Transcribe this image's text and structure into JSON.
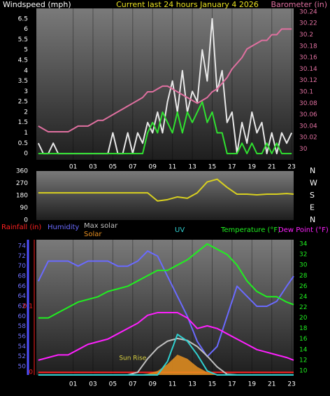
{
  "chart_data": [
    {
      "type": "line",
      "title": "Current last 24 hours January 4 2026",
      "y_label": "Windspeed (mph)",
      "y2_label": "Barometer (in)",
      "xlim": [
        -2.7,
        23.2
      ],
      "xticks": [
        {
          "value": 1,
          "label": "01"
        },
        {
          "value": 3,
          "label": "03"
        },
        {
          "value": 5,
          "label": "05"
        },
        {
          "value": 7,
          "label": "07"
        },
        {
          "value": 9,
          "label": "09"
        },
        11,
        13,
        15,
        17,
        19,
        21,
        23
      ],
      "ylim": [
        -0.3,
        7
      ],
      "yticks": [
        0,
        0.5,
        1,
        1.5,
        2,
        2.5,
        3,
        3.5,
        4,
        4.5,
        5,
        5.5,
        6,
        6.5
      ],
      "y2lim": [
        29.981,
        30.246
      ],
      "y2ticks": [
        30,
        30.02,
        30.04,
        30.06,
        30.08,
        30.1,
        30.12,
        30.14,
        30.16,
        30.18,
        30.2,
        30.22,
        30.24
      ],
      "x": [
        -2.5,
        -2,
        -1.5,
        -1,
        -0.5,
        0,
        0.5,
        1,
        1.5,
        2,
        2.5,
        3,
        3.5,
        4,
        4.5,
        5,
        5.5,
        6,
        6.5,
        7,
        7.5,
        8,
        8.5,
        9,
        9.5,
        10,
        10.5,
        11,
        11.5,
        12,
        12.5,
        13,
        13.5,
        14,
        14.5,
        15,
        15.5,
        16,
        16.5,
        17,
        17.5,
        18,
        18.5,
        19,
        19.5,
        20,
        20.5,
        21,
        21.5,
        22,
        22.5,
        23
      ],
      "series": [
        {
          "color": "#e8e8e8",
          "values": [
            0.5,
            0,
            0,
            0.5,
            0,
            0,
            0,
            0,
            0,
            0,
            0,
            0,
            0,
            0,
            0,
            1,
            0,
            0,
            1,
            0,
            1,
            0.5,
            1.5,
            1,
            2,
            1,
            2.5,
            3.5,
            2,
            4,
            2,
            3,
            2.5,
            5,
            3.5,
            6.5,
            3,
            4,
            1.5,
            2,
            0,
            1.5,
            0.5,
            2,
            1,
            1.5,
            0,
            1,
            0,
            1,
            0.5,
            1
          ]
        },
        {
          "color": "#30e030",
          "values": [
            0,
            0,
            0,
            0,
            0,
            0,
            0,
            0,
            0,
            0,
            0,
            0,
            0,
            0,
            0,
            0,
            0,
            0,
            0,
            0,
            0,
            0,
            1,
            1.5,
            1,
            2,
            1.5,
            1,
            2,
            1,
            2,
            1.5,
            2,
            2.5,
            1.5,
            2,
            1,
            1,
            0,
            0,
            0,
            0.5,
            0,
            0.5,
            0,
            0,
            0.5,
            0,
            0.5,
            0,
            0,
            0
          ]
        },
        {
          "color": "#e070a0",
          "axis": "y2",
          "values": [
            30.04,
            30.035,
            30.03,
            30.03,
            30.03,
            30.03,
            30.03,
            30.035,
            30.04,
            30.04,
            30.04,
            30.045,
            30.05,
            30.05,
            30.055,
            30.06,
            30.065,
            30.07,
            30.075,
            30.08,
            30.085,
            30.09,
            30.1,
            30.1,
            30.105,
            30.11,
            30.11,
            30.105,
            30.1,
            30.095,
            30.09,
            30.085,
            30.08,
            30.085,
            30.09,
            30.1,
            30.105,
            30.115,
            30.125,
            30.14,
            30.15,
            30.16,
            30.175,
            30.18,
            30.185,
            30.19,
            30.19,
            30.2,
            30.2,
            30.21,
            30.21,
            30.21
          ]
        }
      ]
    },
    {
      "type": "line",
      "xlim": [
        -2.7,
        23.2
      ],
      "ylim": [
        0,
        360
      ],
      "yticks": [
        0,
        90,
        180,
        270,
        360
      ],
      "y2lim": [
        0,
        360
      ],
      "y2ticks": [
        {
          "value": 360,
          "label": "N"
        },
        {
          "value": 270,
          "label": "W"
        },
        {
          "value": 180,
          "label": "S"
        },
        {
          "value": 90,
          "label": "E"
        },
        {
          "value": 0,
          "label": "N"
        }
      ],
      "x": [
        -2.5,
        -1.5,
        -0.5,
        0.5,
        1.5,
        2.5,
        3.5,
        4.5,
        5.5,
        6.5,
        7.5,
        8.5,
        9.5,
        10.5,
        11.5,
        12.5,
        13.5,
        14.5,
        15.5,
        16.5,
        17.5,
        18.5,
        19.5,
        20.5,
        21.5,
        22.5,
        23.2
      ],
      "series": [
        {
          "color": "#d8d020",
          "values": [
            200,
            200,
            200,
            200,
            200,
            200,
            200,
            200,
            200,
            200,
            200,
            200,
            140,
            150,
            170,
            160,
            200,
            280,
            300,
            240,
            190,
            190,
            185,
            190,
            190,
            195,
            190
          ]
        }
      ]
    },
    {
      "type": "line",
      "xlim": [
        -2.7,
        23.2
      ],
      "xticks": [
        {
          "value": 1,
          "label": "01"
        },
        {
          "value": 3,
          "label": "03"
        },
        {
          "value": 5,
          "label": "05"
        },
        {
          "value": 7,
          "label": "07"
        },
        {
          "value": 9,
          "label": "09"
        },
        11,
        13,
        15,
        17,
        19,
        21,
        23
      ],
      "ylim": [
        48.33,
        75.26
      ],
      "yticks": [
        50,
        52,
        54,
        56,
        58,
        60,
        62,
        64,
        66,
        68,
        70,
        72,
        74
      ],
      "y2lim": [
        9.2,
        34.8
      ],
      "y2ticks": [
        10,
        12,
        14,
        16,
        18,
        20,
        22,
        24,
        26,
        28,
        30,
        32,
        34
      ],
      "y3lim": [
        -0.004,
        0.201
      ],
      "y3ticks": [
        0,
        0.1
      ],
      "y4lim": [
        0,
        1000
      ],
      "y5lim": [
        0,
        10
      ],
      "annotation": "Sun Rise",
      "x": [
        -2.5,
        -1.5,
        -0.5,
        0.5,
        1.5,
        2.5,
        3.5,
        4.5,
        5.5,
        6.5,
        7.5,
        8.5,
        9.5,
        10.5,
        11.5,
        12.5,
        13.5,
        14.5,
        15.5,
        16.5,
        17.5,
        18.5,
        19.5,
        20.5,
        21.5,
        22.5,
        23.2
      ],
      "series": [
        {
          "name": "Rainfall (in)",
          "color": "#ff2020",
          "axis": "y3",
          "values": [
            0,
            0,
            0,
            0,
            0,
            0,
            0,
            0,
            0,
            0,
            0,
            0,
            0,
            0,
            0,
            0,
            0,
            0,
            0,
            0,
            0,
            0,
            0,
            0,
            0,
            0,
            0
          ]
        },
        {
          "name": "Humidity",
          "color": "#6a6aff",
          "values": [
            67,
            71,
            71,
            71,
            70,
            71,
            71,
            71,
            70,
            70,
            71,
            73,
            72,
            68,
            64,
            60,
            55,
            52,
            54,
            60,
            66,
            64,
            62,
            62,
            63,
            66,
            68
          ]
        },
        {
          "name": "Max solar",
          "color": "#c0c0c0",
          "axis": "y4",
          "values": [
            0,
            0,
            0,
            0,
            0,
            0,
            0,
            0,
            0,
            0,
            20,
            120,
            200,
            250,
            270,
            255,
            210,
            140,
            60,
            5,
            0,
            0,
            0,
            0,
            0,
            0,
            0
          ]
        },
        {
          "name": "Solar",
          "color": "#e89020",
          "axis": "y4",
          "area": true,
          "values": [
            0,
            0,
            0,
            0,
            0,
            0,
            0,
            0,
            0,
            0,
            0,
            10,
            30,
            80,
            150,
            120,
            60,
            20,
            5,
            0,
            0,
            0,
            0,
            0,
            0,
            0,
            0
          ]
        },
        {
          "name": "UV",
          "color": "#30d0d0",
          "axis": "y5",
          "values": [
            0,
            0,
            0,
            0,
            0,
            0,
            0,
            0,
            0,
            0,
            0,
            0,
            0,
            1,
            3,
            2.5,
            1.5,
            0.3,
            0,
            0,
            0,
            0,
            0,
            0,
            0,
            0,
            0
          ]
        },
        {
          "name": "Temperature (°F)",
          "color": "#20f020",
          "axis": "y2",
          "values": [
            20,
            20,
            21,
            22,
            23,
            23.5,
            24,
            25,
            25.5,
            26,
            27,
            28,
            29,
            29,
            30,
            31,
            32.5,
            34,
            33,
            32,
            30,
            27,
            25,
            24,
            24,
            23,
            22.5
          ]
        },
        {
          "name": "Dew Point (°F)",
          "color": "#ff20ff",
          "axis": "y2",
          "values": [
            12,
            12.5,
            13,
            13,
            14,
            15,
            15.5,
            16,
            17,
            18,
            19,
            20.5,
            21,
            21,
            21,
            20,
            18,
            18.5,
            18,
            17,
            16,
            15,
            14,
            13.5,
            13,
            12.5,
            12
          ]
        }
      ]
    }
  ]
}
